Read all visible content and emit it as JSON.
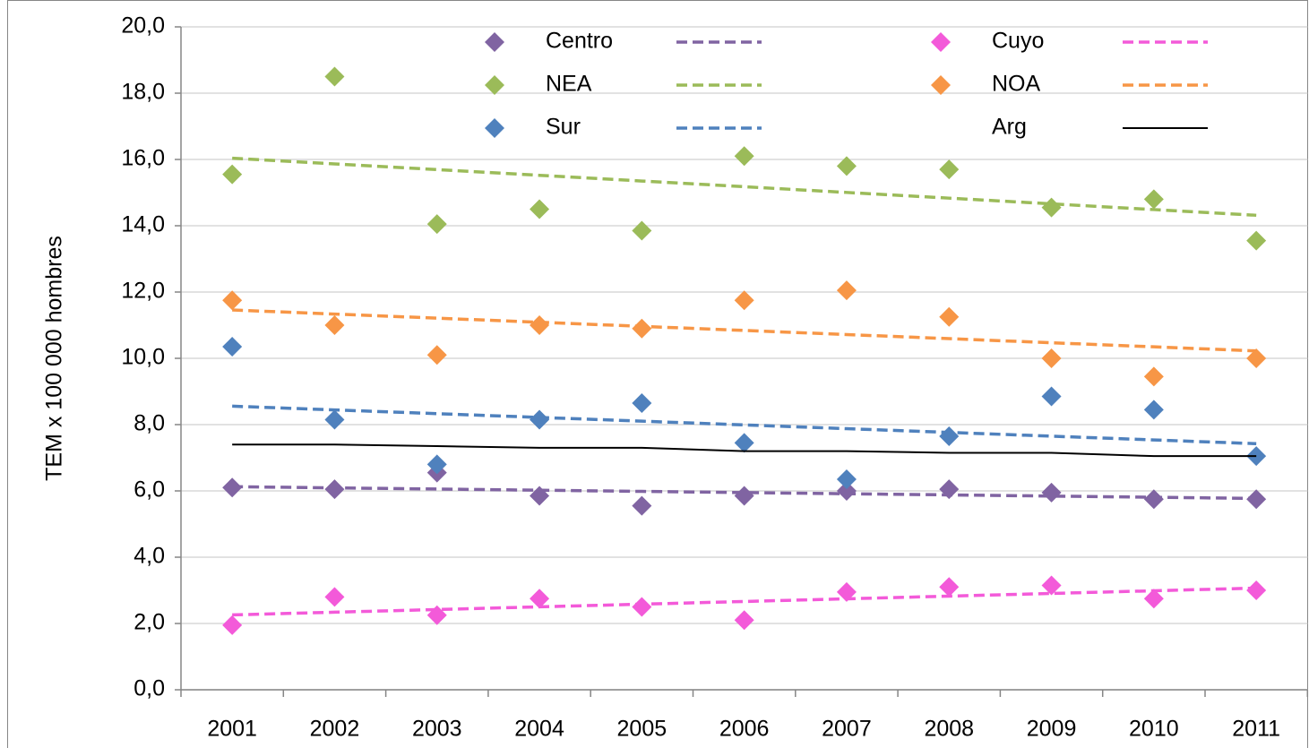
{
  "chart_data": {
    "type": "scatter",
    "y_label": "TEM x 100 000 hombres",
    "categories": [
      "2001",
      "2002",
      "2003",
      "2004",
      "2005",
      "2006",
      "2007",
      "2008",
      "2009",
      "2010",
      "2011"
    ],
    "ylim": [
      0,
      20
    ],
    "yticks": [
      {
        "value": 0,
        "label": "0,0"
      },
      {
        "value": 2,
        "label": "2,0"
      },
      {
        "value": 4,
        "label": "4,0"
      },
      {
        "value": 6,
        "label": "6,0"
      },
      {
        "value": 8,
        "label": "8,0"
      },
      {
        "value": 10,
        "label": "10,0"
      },
      {
        "value": 12,
        "label": "12,0"
      },
      {
        "value": 14,
        "label": "14,0"
      },
      {
        "value": 16,
        "label": "16,0"
      },
      {
        "value": 18,
        "label": "18,0"
      },
      {
        "value": 20,
        "label": "20,0"
      }
    ],
    "grid": true,
    "series": [
      {
        "name": "Centro",
        "color": "#8064a2",
        "markers": true,
        "trendline": true,
        "line": false,
        "values": [
          6.1,
          6.05,
          6.55,
          5.85,
          5.55,
          5.85,
          6.0,
          6.05,
          5.95,
          5.75,
          5.75
        ]
      },
      {
        "name": "NEA",
        "color": "#9bbb59",
        "markers": true,
        "trendline": true,
        "line": false,
        "values": [
          15.55,
          18.5,
          14.05,
          14.5,
          13.85,
          16.1,
          15.8,
          15.7,
          14.55,
          14.8,
          13.55
        ]
      },
      {
        "name": "Sur",
        "color": "#4f81bd",
        "markers": true,
        "trendline": true,
        "line": false,
        "values": [
          10.35,
          8.15,
          6.8,
          8.15,
          8.65,
          7.45,
          6.35,
          7.65,
          8.85,
          8.45,
          7.05
        ]
      },
      {
        "name": "Cuyo",
        "color": "#f35ad9",
        "markers": true,
        "trendline": true,
        "line": false,
        "values": [
          1.95,
          2.8,
          2.25,
          2.75,
          2.5,
          2.1,
          2.95,
          3.1,
          3.15,
          2.75,
          3.0
        ]
      },
      {
        "name": "NOA",
        "color": "#f79646",
        "markers": true,
        "trendline": true,
        "line": false,
        "values": [
          11.75,
          11.0,
          10.1,
          11.0,
          10.9,
          11.75,
          12.05,
          11.25,
          10.0,
          9.45,
          10.0
        ]
      },
      {
        "name": "Arg",
        "color": "#000000",
        "markers": false,
        "trendline": false,
        "line": true,
        "values": [
          7.4,
          7.4,
          7.35,
          7.3,
          7.3,
          7.2,
          7.2,
          7.15,
          7.15,
          7.05,
          7.05
        ]
      }
    ]
  }
}
